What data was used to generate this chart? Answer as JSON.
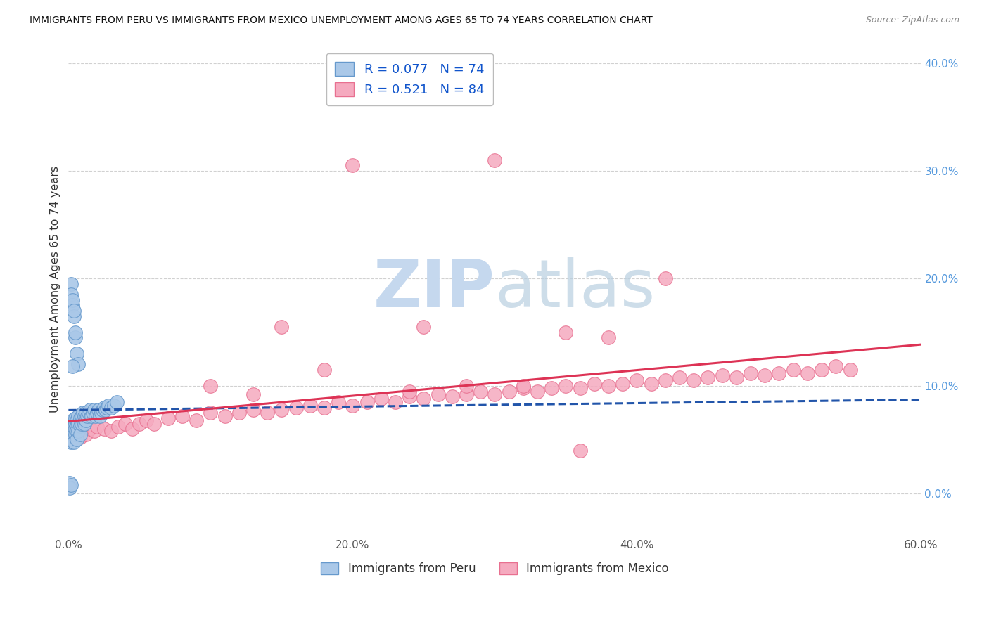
{
  "title": "IMMIGRANTS FROM PERU VS IMMIGRANTS FROM MEXICO UNEMPLOYMENT AMONG AGES 65 TO 74 YEARS CORRELATION CHART",
  "source": "Source: ZipAtlas.com",
  "ylabel": "Unemployment Among Ages 65 to 74 years",
  "xlim": [
    0.0,
    0.6
  ],
  "ylim": [
    -0.04,
    0.42
  ],
  "xticks": [
    0.0,
    0.1,
    0.2,
    0.3,
    0.4,
    0.5,
    0.6
  ],
  "xtick_labels": [
    "0.0%",
    "",
    "20.0%",
    "",
    "40.0%",
    "",
    "60.0%"
  ],
  "yticks": [
    0.0,
    0.1,
    0.2,
    0.3,
    0.4
  ],
  "ytick_labels": [
    "0.0%",
    "10.0%",
    "20.0%",
    "30.0%",
    "40.0%"
  ],
  "peru_R": 0.077,
  "peru_N": 74,
  "mexico_R": 0.521,
  "mexico_N": 84,
  "peru_color": "#aac8e8",
  "mexico_color": "#f5aabf",
  "peru_edge_color": "#6699cc",
  "mexico_edge_color": "#e87090",
  "peru_line_color": "#2255aa",
  "mexico_line_color": "#dd3355",
  "legend_text_color": "#1155cc",
  "tick_color": "#5599dd",
  "background_color": "#ffffff",
  "watermark_zip": "ZIP",
  "watermark_atlas": "atlas",
  "watermark_color": "#c5d8ee",
  "peru_x": [
    0.001,
    0.001,
    0.001,
    0.001,
    0.002,
    0.002,
    0.002,
    0.002,
    0.002,
    0.003,
    0.003,
    0.003,
    0.003,
    0.003,
    0.004,
    0.004,
    0.004,
    0.004,
    0.004,
    0.005,
    0.005,
    0.005,
    0.005,
    0.006,
    0.006,
    0.006,
    0.006,
    0.007,
    0.007,
    0.007,
    0.008,
    0.008,
    0.008,
    0.009,
    0.009,
    0.01,
    0.01,
    0.011,
    0.011,
    0.012,
    0.012,
    0.013,
    0.014,
    0.015,
    0.016,
    0.017,
    0.018,
    0.019,
    0.02,
    0.021,
    0.022,
    0.023,
    0.024,
    0.025,
    0.026,
    0.027,
    0.028,
    0.03,
    0.032,
    0.034,
    0.002,
    0.002,
    0.003,
    0.003,
    0.004,
    0.004,
    0.005,
    0.005,
    0.006,
    0.007,
    0.001,
    0.001,
    0.002,
    0.003
  ],
  "peru_y": [
    0.063,
    0.06,
    0.055,
    0.05,
    0.065,
    0.06,
    0.058,
    0.052,
    0.048,
    0.068,
    0.062,
    0.058,
    0.055,
    0.05,
    0.065,
    0.062,
    0.058,
    0.054,
    0.048,
    0.07,
    0.065,
    0.06,
    0.055,
    0.068,
    0.063,
    0.058,
    0.05,
    0.072,
    0.065,
    0.058,
    0.07,
    0.063,
    0.055,
    0.072,
    0.065,
    0.075,
    0.068,
    0.072,
    0.065,
    0.075,
    0.068,
    0.072,
    0.075,
    0.078,
    0.072,
    0.075,
    0.078,
    0.072,
    0.075,
    0.078,
    0.072,
    0.075,
    0.078,
    0.08,
    0.078,
    0.08,
    0.082,
    0.08,
    0.082,
    0.085,
    0.195,
    0.185,
    0.175,
    0.18,
    0.165,
    0.17,
    0.145,
    0.15,
    0.13,
    0.12,
    0.01,
    0.005,
    0.008,
    0.118
  ],
  "mexico_x": [
    0.001,
    0.002,
    0.003,
    0.004,
    0.005,
    0.006,
    0.007,
    0.008,
    0.01,
    0.012,
    0.015,
    0.018,
    0.02,
    0.025,
    0.03,
    0.035,
    0.04,
    0.045,
    0.05,
    0.055,
    0.06,
    0.07,
    0.08,
    0.09,
    0.1,
    0.11,
    0.12,
    0.13,
    0.14,
    0.15,
    0.16,
    0.17,
    0.18,
    0.19,
    0.2,
    0.21,
    0.22,
    0.23,
    0.24,
    0.25,
    0.26,
    0.27,
    0.28,
    0.29,
    0.3,
    0.31,
    0.32,
    0.33,
    0.34,
    0.35,
    0.36,
    0.37,
    0.38,
    0.39,
    0.4,
    0.41,
    0.42,
    0.43,
    0.44,
    0.45,
    0.46,
    0.47,
    0.48,
    0.49,
    0.5,
    0.51,
    0.52,
    0.53,
    0.54,
    0.55,
    0.2,
    0.35,
    0.3,
    0.25,
    0.15,
    0.1,
    0.38,
    0.42,
    0.18,
    0.28,
    0.32,
    0.24,
    0.36,
    0.13
  ],
  "mexico_y": [
    0.06,
    0.055,
    0.058,
    0.052,
    0.06,
    0.055,
    0.058,
    0.052,
    0.06,
    0.055,
    0.06,
    0.058,
    0.062,
    0.06,
    0.058,
    0.062,
    0.065,
    0.06,
    0.065,
    0.068,
    0.065,
    0.07,
    0.072,
    0.068,
    0.075,
    0.072,
    0.075,
    0.078,
    0.075,
    0.078,
    0.08,
    0.082,
    0.08,
    0.085,
    0.082,
    0.085,
    0.088,
    0.085,
    0.09,
    0.088,
    0.092,
    0.09,
    0.092,
    0.095,
    0.092,
    0.095,
    0.098,
    0.095,
    0.098,
    0.1,
    0.098,
    0.102,
    0.1,
    0.102,
    0.105,
    0.102,
    0.105,
    0.108,
    0.105,
    0.108,
    0.11,
    0.108,
    0.112,
    0.11,
    0.112,
    0.115,
    0.112,
    0.115,
    0.118,
    0.115,
    0.305,
    0.15,
    0.31,
    0.155,
    0.155,
    0.1,
    0.145,
    0.2,
    0.115,
    0.1,
    0.1,
    0.095,
    0.04,
    0.092
  ]
}
